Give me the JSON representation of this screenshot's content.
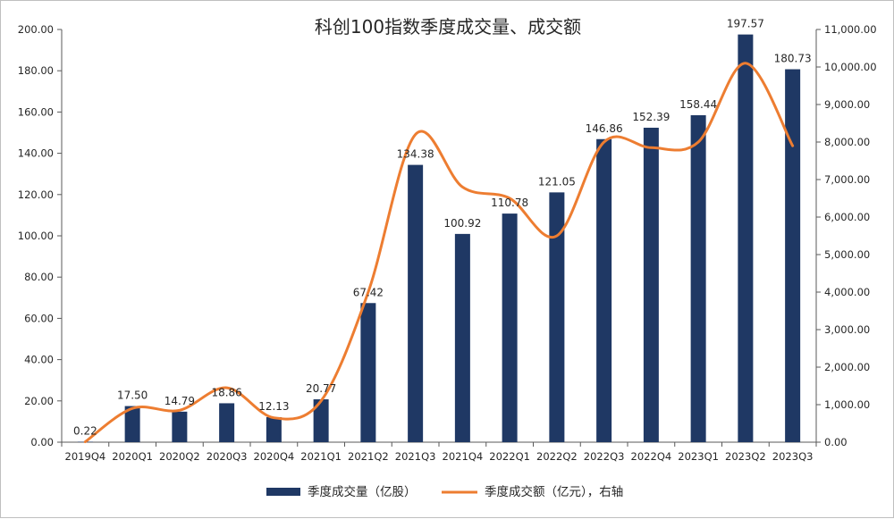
{
  "chart_data": {
    "type": "bar",
    "title": "科创100指数季度成交量、成交额",
    "categories": [
      "2019Q4",
      "2020Q1",
      "2020Q2",
      "2020Q3",
      "2020Q4",
      "2021Q1",
      "2021Q2",
      "2021Q3",
      "2021Q4",
      "2022Q1",
      "2022Q2",
      "2022Q3",
      "2022Q4",
      "2023Q1",
      "2023Q2",
      "2023Q3"
    ],
    "series": [
      {
        "name": "季度成交量（亿股）",
        "type": "bar",
        "axis": "left",
        "color": "#1f3864",
        "values": [
          0.22,
          17.5,
          14.79,
          18.86,
          12.13,
          20.77,
          67.42,
          134.38,
          100.92,
          110.78,
          121.05,
          146.86,
          152.39,
          158.44,
          197.57,
          180.73
        ],
        "labels": [
          "0.22",
          "17.50",
          "14.79",
          "18.86",
          "12.13",
          "20.77",
          "67.42",
          "134.38",
          "100.92",
          "110.78",
          "121.05",
          "146.86",
          "152.39",
          "158.44",
          "197.57",
          "180.73"
        ]
      },
      {
        "name": "季度成交额（亿元），右轴",
        "type": "line",
        "axis": "right",
        "color": "#ed7d31",
        "values": [
          10,
          900,
          850,
          1450,
          650,
          1100,
          4000,
          8200,
          6800,
          6500,
          5500,
          8000,
          7850,
          8000,
          10100,
          7900
        ]
      }
    ],
    "y_left": {
      "min": 0,
      "max": 200,
      "step": 20,
      "ticks": [
        "0.00",
        "20.00",
        "40.00",
        "60.00",
        "80.00",
        "100.00",
        "120.00",
        "140.00",
        "160.00",
        "180.00",
        "200.00"
      ]
    },
    "y_right": {
      "min": 0,
      "max": 11000,
      "step": 1000,
      "ticks": [
        "0.00",
        "1,000.00",
        "2,000.00",
        "3,000.00",
        "4,000.00",
        "5,000.00",
        "6,000.00",
        "7,000.00",
        "8,000.00",
        "9,000.00",
        "10,000.00",
        "11,000.00"
      ]
    },
    "grid": false,
    "legend": "bottom-center"
  }
}
